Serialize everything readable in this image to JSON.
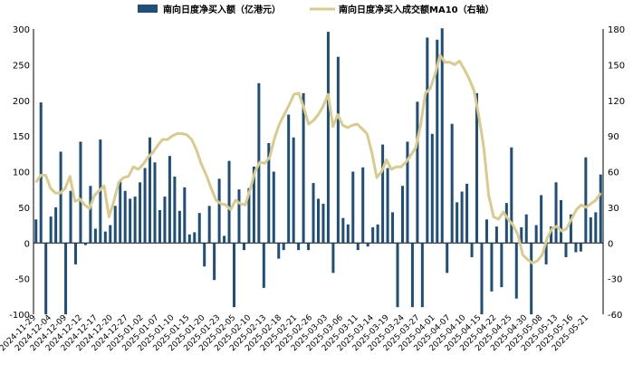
{
  "chart_data": {
    "type": "bar+line",
    "title": "",
    "legend": {
      "placement": "top",
      "entries": [
        "南向日度净买入额（亿港元）",
        "南向日度净买入成交额MA10（右轴）"
      ]
    },
    "left_axis": {
      "min": -100,
      "max": 300,
      "ticks": [
        "-100",
        "-50",
        "0",
        "50",
        "100",
        "150",
        "200",
        "250",
        "300"
      ]
    },
    "right_axis": {
      "min": -60,
      "max": 180,
      "ticks": [
        "-60",
        "-30",
        "0",
        "30",
        "60",
        "90",
        "120",
        "150",
        "180"
      ]
    },
    "x_tick_labels": [
      "2024-11-29",
      "2024-12-04",
      "2024-12-09",
      "2024-12-12",
      "2024-12-17",
      "2024-12-20",
      "2024-12-27",
      "2025-01-02",
      "2025-01-07",
      "2025-01-10",
      "2025-01-15",
      "2025-01-20",
      "2025-01-23",
      "2025-02-05",
      "2025-02-10",
      "2025-02-13",
      "2025-02-18",
      "2025-02-21",
      "2025-02-26",
      "2025-03-03",
      "2025-03-06",
      "2025-03-11",
      "2025-03-14",
      "2025-03-19",
      "2025-03-24",
      "2025-03-27",
      "2025-04-01",
      "2025-04-07",
      "2025-04-10",
      "2025-04-15",
      "2025-04-22",
      "2025-04-25",
      "2025-04-30",
      "2025-05-08",
      "2025-05-13",
      "2025-05-16",
      "2025-05-21"
    ],
    "colors": {
      "bar": "#1f4e79",
      "line": "#d9cb8e"
    },
    "series": [
      {
        "name": "南向日度净买入额（亿港元）",
        "axis": "left",
        "kind": "bar",
        "values": [
          33,
          197,
          -100,
          37,
          50,
          128,
          -100,
          73,
          -30,
          142,
          -3,
          80,
          20,
          145,
          16,
          25,
          52,
          88,
          73,
          62,
          65,
          85,
          105,
          148,
          113,
          46,
          65,
          122,
          93,
          45,
          78,
          12,
          15,
          42,
          -33,
          52,
          -52,
          90,
          10,
          115,
          -90,
          75,
          -10,
          77,
          107,
          224,
          -63,
          140,
          100,
          -22,
          -10,
          180,
          148,
          -10,
          210,
          -10,
          84,
          62,
          55,
          296,
          -42,
          261,
          35,
          26,
          100,
          -10,
          106,
          -5,
          22,
          26,
          138,
          105,
          43,
          -90,
          80,
          142,
          -90,
          198,
          -90,
          288,
          153,
          285,
          301,
          -42,
          167,
          57,
          72,
          83,
          -20,
          210,
          -100,
          33,
          -68,
          23,
          -62,
          56,
          134,
          -78,
          22,
          40,
          -100,
          25,
          67,
          -30,
          23,
          85,
          60,
          -20,
          40,
          -13,
          -12,
          120,
          36,
          43,
          96
        ]
      },
      {
        "name": "南向日度净买入成交额MA10（右轴）",
        "axis": "right",
        "kind": "line",
        "values": [
          51,
          57,
          57,
          46,
          42,
          42,
          46,
          56,
          35,
          37,
          32,
          29,
          40,
          44,
          48,
          22,
          35,
          51,
          55,
          56,
          64,
          62,
          66,
          72,
          76,
          82,
          87,
          87,
          90,
          92,
          92,
          91,
          87,
          78,
          66,
          57,
          46,
          36,
          33,
          32,
          28,
          36,
          33,
          32,
          45,
          60,
          68,
          67,
          72,
          88,
          100,
          108,
          116,
          125,
          126,
          114,
          100,
          103,
          108,
          115,
          125,
          98,
          108,
          99,
          97,
          99,
          100,
          96,
          92,
          76,
          55,
          60,
          70,
          62,
          64,
          64,
          68,
          74,
          80,
          99,
          126,
          130,
          142,
          158,
          152,
          152,
          150,
          153,
          146,
          138,
          128,
          106,
          80,
          40,
          22,
          20,
          26,
          20,
          15,
          7,
          -10,
          -14,
          -17,
          -15,
          -10,
          4,
          12,
          14,
          10,
          12,
          20,
          28,
          32,
          30,
          33,
          36,
          42
        ]
      }
    ]
  }
}
